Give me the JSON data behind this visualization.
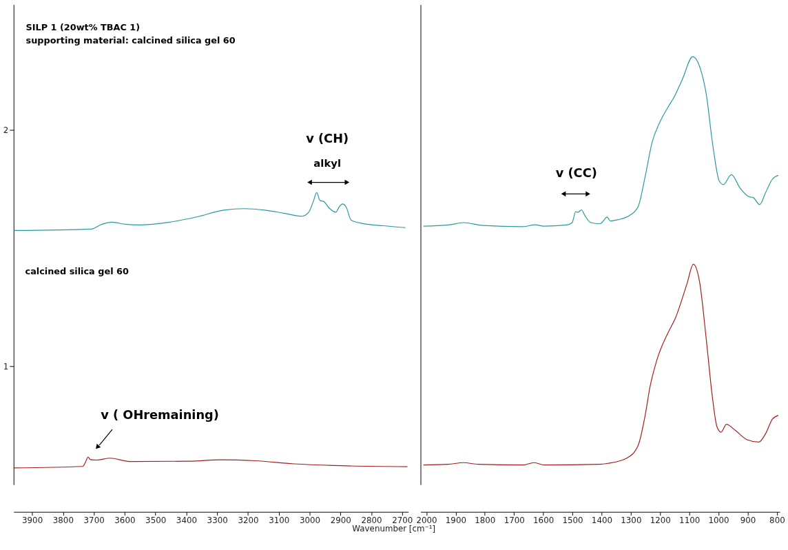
{
  "chart_data": [
    {
      "type": "line",
      "xlabel": "Wavenumber [cm⁻¹]",
      "xlim": [
        3960,
        2680
      ],
      "ylim": [
        0.5,
        2.53
      ],
      "xticks": [
        3900,
        3800,
        3700,
        3600,
        3500,
        3400,
        3300,
        3200,
        3100,
        3000,
        2900,
        2800,
        2700
      ],
      "yticks": [
        1,
        2
      ],
      "series": [
        {
          "color": "#259a9a",
          "x": [
            3959,
            3707,
            3674,
            3641,
            3597,
            3553,
            3454,
            3366,
            3278,
            3212,
            3146,
            3080,
            3025,
            3003,
            2988,
            2977,
            2966,
            2955,
            2937,
            2915,
            2904,
            2893,
            2882,
            2865,
            2827,
            2761,
            2689
          ],
          "values": [
            1.575,
            1.581,
            1.601,
            1.61,
            1.601,
            1.598,
            1.61,
            1.632,
            1.661,
            1.667,
            1.661,
            1.647,
            1.635,
            1.652,
            1.698,
            1.735,
            1.701,
            1.698,
            1.67,
            1.652,
            1.675,
            1.687,
            1.675,
            1.618,
            1.604,
            1.595,
            1.587
          ]
        },
        {
          "color": "#a31c1c",
          "x": [
            3960,
            3736,
            3725,
            3719,
            3711,
            3690,
            3647,
            3584,
            3390,
            3288,
            3178,
            3051,
            2924,
            2683
          ],
          "values": [
            0.571,
            0.577,
            0.601,
            0.617,
            0.606,
            0.604,
            0.612,
            0.598,
            0.599,
            0.605,
            0.601,
            0.588,
            0.581,
            0.576
          ]
        }
      ],
      "annotations": [
        "SILP 1 (20wt% TBAC 1)",
        "supporting material: calcined silica gel 60",
        "v (CH)",
        "alkyl",
        "calcined silica gel 60",
        "v ( OHremaining)"
      ]
    },
    {
      "type": "line",
      "tick_labels": "x",
      "xlim": [
        2020,
        790
      ],
      "ylim": [
        0.5,
        2.53
      ],
      "xticks": [
        2000,
        1900,
        1800,
        1700,
        1600,
        1500,
        1400,
        1300,
        1200,
        1100,
        1000,
        900,
        800
      ],
      "series": [
        {
          "color": "#259a9a",
          "x": [
            2010,
            1925,
            1873,
            1806,
            1671,
            1627,
            1599,
            1520,
            1501,
            1489,
            1481,
            1469,
            1457,
            1437,
            1406,
            1393,
            1382,
            1370,
            1346,
            1306,
            1275,
            1251,
            1227,
            1203,
            1171,
            1152,
            1124,
            1088,
            1064,
            1041,
            1021,
            997,
            983,
            956,
            926,
            894,
            882,
            859,
            839,
            815,
            795
          ],
          "values": [
            1.593,
            1.598,
            1.608,
            1.596,
            1.591,
            1.599,
            1.593,
            1.598,
            1.608,
            1.654,
            1.652,
            1.662,
            1.637,
            1.608,
            1.603,
            1.617,
            1.632,
            1.615,
            1.62,
            1.637,
            1.676,
            1.803,
            1.949,
            2.027,
            2.1,
            2.139,
            2.213,
            2.31,
            2.266,
            2.144,
            1.949,
            1.783,
            1.769,
            1.811,
            1.754,
            1.717,
            1.715,
            1.684,
            1.734,
            1.793,
            1.808
          ]
        },
        {
          "color": "#a31c1c",
          "x": [
            2010,
            1925,
            1873,
            1822,
            1671,
            1631,
            1596,
            1409,
            1378,
            1314,
            1275,
            1251,
            1235,
            1211,
            1172,
            1148,
            1108,
            1086,
            1065,
            1041,
            1021,
            1005,
            991,
            973,
            942,
            902,
            862,
            839,
            815,
            795
          ],
          "values": [
            0.583,
            0.586,
            0.593,
            0.586,
            0.583,
            0.593,
            0.583,
            0.586,
            0.59,
            0.612,
            0.666,
            0.793,
            0.91,
            1.027,
            1.144,
            1.203,
            1.349,
            1.432,
            1.359,
            1.105,
            0.871,
            0.744,
            0.722,
            0.755,
            0.729,
            0.69,
            0.68,
            0.715,
            0.778,
            0.793
          ]
        }
      ],
      "annotations": [
        "v (CC)"
      ]
    }
  ]
}
